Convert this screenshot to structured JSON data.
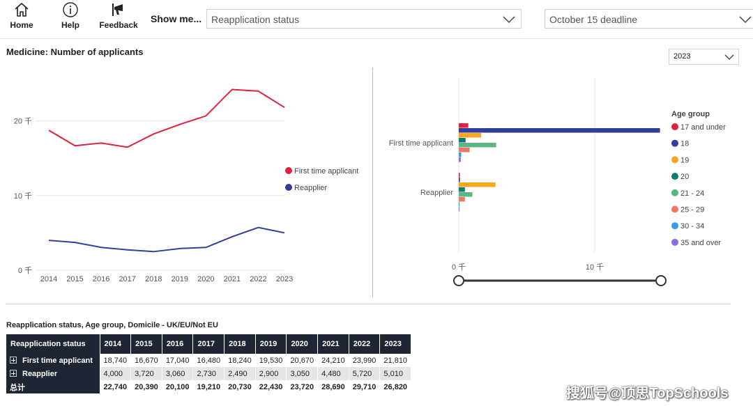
{
  "toolbar": {
    "home_label": "Home",
    "help_label": "Help",
    "feedback_label": "Feedback",
    "show_me_label": "Show me...",
    "status_dropdown": "Reapplication status",
    "deadline_dropdown": "October 15 deadline"
  },
  "line_panel": {
    "title": "Medicine: Number of applicants",
    "year_dropdown": "2023"
  },
  "chart_data": [
    {
      "type": "line",
      "x": [
        "2014",
        "2015",
        "2016",
        "2017",
        "2018",
        "2019",
        "2020",
        "2021",
        "2022",
        "2023"
      ],
      "y_ticks": [
        "20 千",
        "10 千",
        "0 千"
      ],
      "y_tick_values": [
        20000,
        10000,
        0
      ],
      "ylim": [
        0,
        25000
      ],
      "grid": true,
      "legend_placement": "right",
      "series": [
        {
          "name": "First time applicant",
          "color": "#e0203c",
          "values": [
            18740,
            16670,
            17040,
            16480,
            18240,
            19530,
            20670,
            24210,
            23990,
            21810
          ]
        },
        {
          "name": "Reapplier",
          "color": "#2f3e9e",
          "values": [
            4000,
            3720,
            3060,
            2730,
            2490,
            2900,
            3050,
            4480,
            5720,
            5010
          ]
        }
      ]
    },
    {
      "type": "bar",
      "orientation": "horizontal",
      "categories": [
        "First time applicant",
        "Reapplier"
      ],
      "x_ticks": [
        "0 千",
        "10 千"
      ],
      "x_tick_values": [
        0,
        10000
      ],
      "xlim": [
        0,
        15000
      ],
      "grid": true,
      "legend_title": "Age group",
      "legend_placement": "right",
      "series": [
        {
          "name": "17 and under",
          "color": "#e0203c",
          "values": [
            700,
            80
          ]
        },
        {
          "name": "18",
          "color": "#2f3e9e",
          "values": [
            14800,
            90
          ]
        },
        {
          "name": "19",
          "color": "#f6a81c",
          "values": [
            1650,
            2700
          ]
        },
        {
          "name": "20",
          "color": "#0f7a6e",
          "values": [
            500,
            450
          ]
        },
        {
          "name": "21 - 24",
          "color": "#5bb585",
          "values": [
            2750,
            1000
          ]
        },
        {
          "name": "25 - 29",
          "color": "#f27664",
          "values": [
            800,
            450
          ]
        },
        {
          "name": "30 - 34",
          "color": "#3a9de0",
          "values": [
            180,
            60
          ]
        },
        {
          "name": "35 and over",
          "color": "#8a6fdb",
          "values": [
            150,
            30
          ]
        }
      ]
    },
    {
      "type": "table",
      "title": "Reapplication status, Age group, Domicile - UK/EU/Not EU",
      "header": "Reapplication status",
      "columns": [
        "2014",
        "2015",
        "2016",
        "2017",
        "2018",
        "2019",
        "2020",
        "2021",
        "2022",
        "2023"
      ],
      "rows": [
        {
          "label": "First time applicant",
          "values": [
            "18,740",
            "16,670",
            "17,040",
            "16,480",
            "18,240",
            "19,530",
            "20,670",
            "24,210",
            "23,990",
            "21,810"
          ]
        },
        {
          "label": "Reapplier",
          "values": [
            "4,000",
            "3,720",
            "3,060",
            "2,730",
            "2,490",
            "2,900",
            "3,050",
            "4,480",
            "5,720",
            "5,010"
          ]
        }
      ],
      "total": {
        "label": "总计",
        "values": [
          "22,740",
          "20,390",
          "20,100",
          "19,210",
          "20,730",
          "22,430",
          "23,720",
          "28,690",
          "29,710",
          "26,820"
        ]
      }
    }
  ],
  "watermark": "搜狐号@顶思TopSchools"
}
